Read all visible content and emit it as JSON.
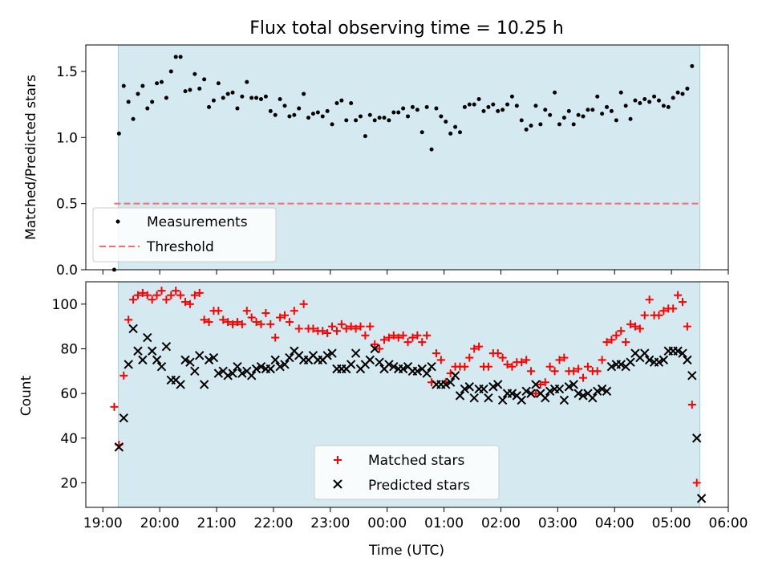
{
  "chart_data": [
    {
      "type": "scatter",
      "title": "Flux total observing time = 10.25 h",
      "ylabel": "Matched/Predicted stars",
      "xlabel": "",
      "xlim_hours": [
        18.7,
        30.0
      ],
      "ylim": [
        0.0,
        1.7
      ],
      "x_start_hours": 19.2,
      "x_step_hours": 0.0833,
      "observing_window_hours": [
        19.27,
        29.5
      ],
      "window_color": "#d4eaf0",
      "yticks": [
        {
          "v": 0.0,
          "label": "0.0"
        },
        {
          "v": 0.5,
          "label": "0.5"
        },
        {
          "v": 1.0,
          "label": "1.0"
        },
        {
          "v": 1.5,
          "label": "1.5"
        }
      ],
      "threshold": {
        "value": 0.5,
        "x_range_hours": [
          19.2,
          29.5
        ],
        "color": "#f07070"
      },
      "series": [
        {
          "name": "Measurements",
          "marker": "dot",
          "color": "#000000",
          "values": [
            0.0,
            1.03,
            1.39,
            1.27,
            1.14,
            1.33,
            1.39,
            1.22,
            1.27,
            1.41,
            1.42,
            1.3,
            1.5,
            1.61,
            1.61,
            1.35,
            1.36,
            1.48,
            1.37,
            1.44,
            1.23,
            1.28,
            1.41,
            1.3,
            1.33,
            1.34,
            1.22,
            1.31,
            1.42,
            1.3,
            1.3,
            1.29,
            1.31,
            1.2,
            1.17,
            1.29,
            1.24,
            1.16,
            1.17,
            1.22,
            1.33,
            1.15,
            1.18,
            1.19,
            1.16,
            1.2,
            1.1,
            1.26,
            1.28,
            1.13,
            1.26,
            1.13,
            1.16,
            1.01,
            1.17,
            1.13,
            1.15,
            1.15,
            1.13,
            1.19,
            1.19,
            1.22,
            1.16,
            1.23,
            1.21,
            1.04,
            1.23,
            0.91,
            1.22,
            1.16,
            1.12,
            1.03,
            1.08,
            1.04,
            1.23,
            1.25,
            1.25,
            1.29,
            1.2,
            1.23,
            1.25,
            1.2,
            1.21,
            1.25,
            1.31,
            1.24,
            1.13,
            1.06,
            1.09,
            1.24,
            1.1,
            1.21,
            1.17,
            1.34,
            1.1,
            1.15,
            1.2,
            1.1,
            1.17,
            1.16,
            1.21,
            1.21,
            1.31,
            1.18,
            1.23,
            1.2,
            1.13,
            1.34,
            1.24,
            1.14,
            1.28,
            1.26,
            1.29,
            1.27,
            1.31,
            1.28,
            1.24,
            1.23,
            1.3,
            1.34,
            1.33,
            1.37,
            1.54
          ]
        }
      ],
      "legend": {
        "placement": "lower-left",
        "entries": [
          "Measurements",
          "Threshold"
        ]
      }
    },
    {
      "type": "scatter",
      "title": "",
      "xlabel": "Time (UTC)",
      "ylabel": "Count",
      "xlim_hours": [
        18.7,
        30.0
      ],
      "ylim": [
        9,
        110
      ],
      "x_start_hours": 19.2,
      "x_step_hours": 0.0833,
      "observing_window_hours": [
        19.27,
        29.5
      ],
      "window_color": "#d4eaf0",
      "xticks": [
        {
          "v": 19,
          "label": "19:00"
        },
        {
          "v": 20,
          "label": "20:00"
        },
        {
          "v": 21,
          "label": "21:00"
        },
        {
          "v": 22,
          "label": "22:00"
        },
        {
          "v": 23,
          "label": "23:00"
        },
        {
          "v": 24,
          "label": "00:00"
        },
        {
          "v": 25,
          "label": "01:00"
        },
        {
          "v": 26,
          "label": "02:00"
        },
        {
          "v": 27,
          "label": "03:00"
        },
        {
          "v": 28,
          "label": "04:00"
        },
        {
          "v": 29,
          "label": "05:00"
        },
        {
          "v": 30,
          "label": "06:00"
        }
      ],
      "yticks": [
        {
          "v": 20,
          "label": "20"
        },
        {
          "v": 40,
          "label": "40"
        },
        {
          "v": 60,
          "label": "60"
        },
        {
          "v": 80,
          "label": "80"
        },
        {
          "v": 100,
          "label": "100"
        }
      ],
      "series": [
        {
          "name": "Matched stars",
          "marker": "plus",
          "color": "#ff0000",
          "values": [
            54,
            37,
            68,
            93,
            102,
            104,
            105,
            104,
            102,
            104,
            106,
            102,
            104,
            106,
            104,
            101,
            100,
            104,
            105,
            93,
            92,
            97,
            97,
            93,
            92,
            91,
            92,
            91,
            97,
            94,
            92,
            91,
            96,
            91,
            85,
            94,
            95,
            92,
            97,
            89,
            100,
            89,
            89,
            88,
            88,
            87,
            90,
            88,
            91,
            89,
            90,
            89,
            90,
            86,
            90,
            82,
            80,
            84,
            85,
            86,
            85,
            86,
            83,
            85,
            86,
            83,
            86,
            65,
            78,
            75,
            65,
            69,
            72,
            72,
            72,
            76,
            80,
            81,
            72,
            72,
            78,
            78,
            76,
            73,
            72,
            74,
            74,
            75,
            70,
            60,
            64,
            65,
            72,
            70,
            75,
            76,
            70,
            70,
            71,
            67,
            72,
            70,
            70,
            75,
            83,
            84,
            86,
            88,
            83,
            91,
            90,
            89,
            95,
            102,
            95,
            95,
            97,
            98,
            98,
            104,
            101,
            90,
            55,
            20
          ]
        },
        {
          "name": "Predicted stars",
          "marker": "x",
          "color": "#000000",
          "values": [
            null,
            36,
            49,
            73,
            89,
            79,
            75,
            85,
            79,
            75,
            72,
            81,
            66,
            66,
            64,
            75,
            74,
            70,
            77,
            64,
            75,
            76,
            69,
            70,
            68,
            69,
            72,
            69,
            70,
            68,
            71,
            72,
            71,
            71,
            75,
            72,
            73,
            76,
            79,
            77,
            75,
            75,
            77,
            75,
            75,
            77,
            78,
            71,
            71,
            71,
            73,
            78,
            71,
            73,
            75,
            80,
            74,
            71,
            73,
            72,
            71,
            71,
            72,
            70,
            70,
            71,
            69,
            72,
            64,
            64,
            64,
            65,
            68,
            59,
            62,
            63,
            58,
            62,
            62,
            58,
            63,
            64,
            57,
            60,
            60,
            59,
            57,
            61,
            60,
            64,
            60,
            58,
            61,
            62,
            62,
            57,
            63,
            64,
            60,
            59,
            60,
            58,
            61,
            62,
            61,
            72,
            73,
            73,
            72,
            74,
            78,
            76,
            78,
            75,
            74,
            74,
            75,
            79,
            79,
            79,
            78,
            75,
            68,
            40,
            13
          ]
        }
      ],
      "legend": {
        "placement": "lower-center",
        "entries": [
          "Matched stars",
          "Predicted stars"
        ]
      }
    }
  ]
}
